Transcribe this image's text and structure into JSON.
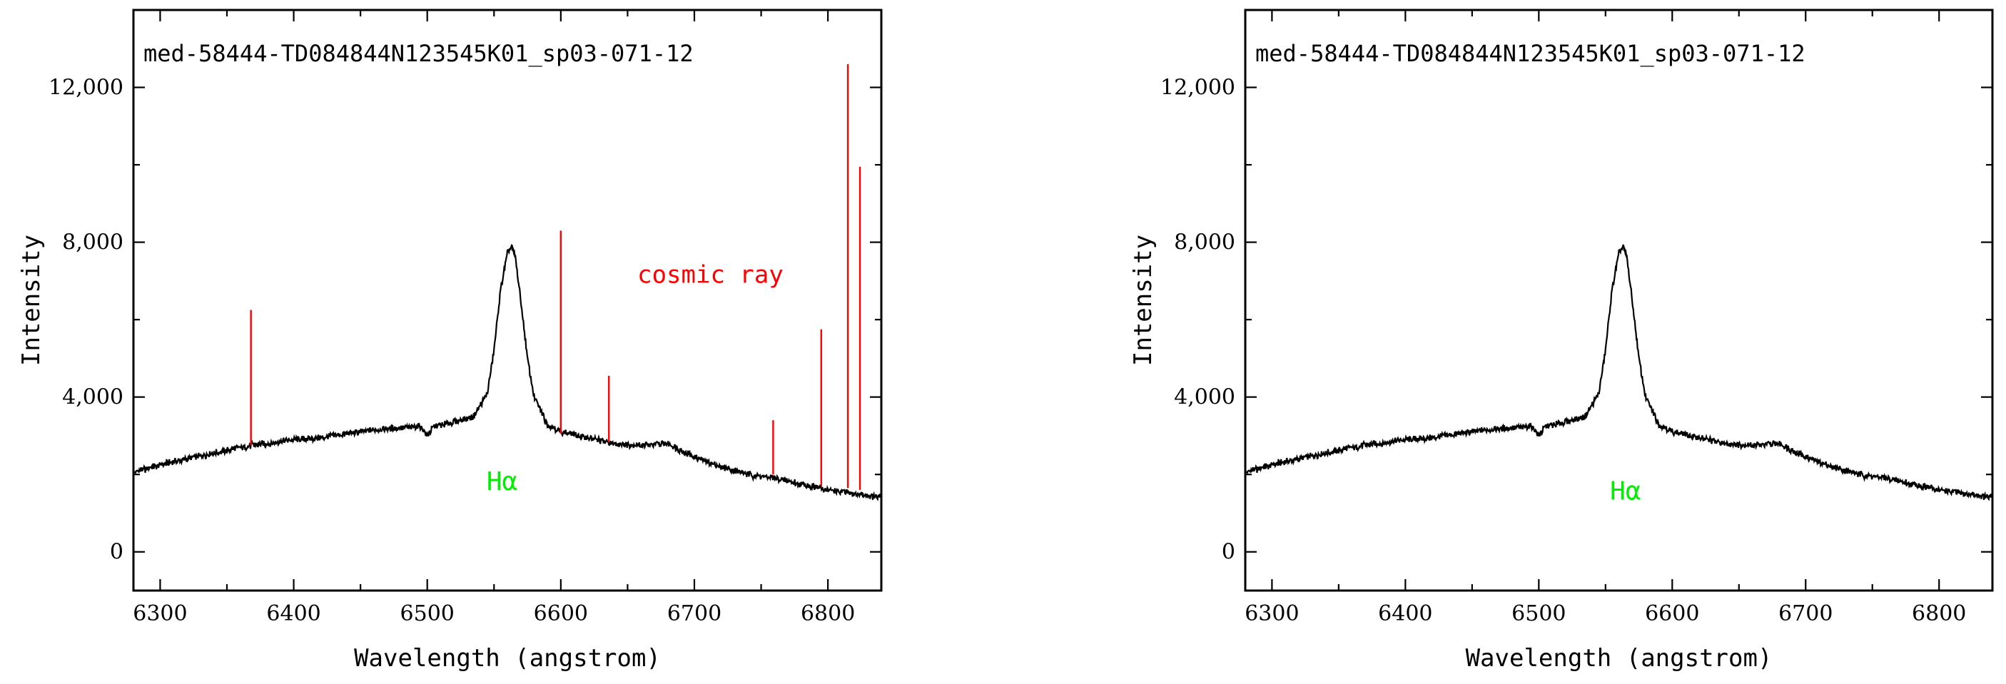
{
  "colors": {
    "spectrum": "#000000",
    "cosmic": "#ff0000",
    "halpha": "#00ee00"
  },
  "chart_data": [
    {
      "type": "line",
      "panel": "left",
      "title": "med-58444-TD084844N123545K01_sp03-071-12",
      "xlabel": "Wavelength (angstrom)",
      "ylabel": "Intensity",
      "xlim": [
        6280,
        6840
      ],
      "ylim": [
        -1000,
        14000
      ],
      "xticks": [
        6300,
        6400,
        6500,
        6600,
        6700,
        6800
      ],
      "xtick_labels": [
        "6300",
        "6400",
        "6500",
        "6600",
        "6700",
        "6800"
      ],
      "yticks": [
        0,
        4000,
        8000,
        12000
      ],
      "ytick_labels": [
        "0",
        "4,000",
        "8,000",
        "12,000"
      ],
      "annotations": [
        {
          "text": "cosmic ray",
          "x": 6712,
          "y": 6950,
          "color": "cosmic"
        },
        {
          "text": "Hα",
          "x": 6556,
          "y": 1600,
          "color": "halpha"
        }
      ],
      "cosmic_rays": [
        {
          "x": 6368,
          "base": 2750,
          "peak": 6250
        },
        {
          "x": 6600,
          "base": 3050,
          "peak": 8300
        },
        {
          "x": 6636,
          "base": 2850,
          "peak": 4550
        },
        {
          "x": 6759,
          "base": 2000,
          "peak": 3400
        },
        {
          "x": 6795,
          "base": 1700,
          "peak": 5750
        },
        {
          "x": 6815,
          "base": 1650,
          "peak": 12600
        },
        {
          "x": 6824,
          "base": 1600,
          "peak": 9950
        }
      ],
      "series": [
        {
          "name": "spectrum",
          "x": [
            6280,
            6300,
            6320,
            6340,
            6360,
            6380,
            6400,
            6420,
            6440,
            6460,
            6480,
            6495,
            6500,
            6505,
            6520,
            6535,
            6545,
            6550,
            6555,
            6560,
            6563,
            6566,
            6570,
            6575,
            6580,
            6590,
            6600,
            6620,
            6640,
            6660,
            6680,
            6700,
            6720,
            6740,
            6760,
            6780,
            6800,
            6820,
            6840
          ],
          "values": [
            2050,
            2250,
            2400,
            2550,
            2700,
            2800,
            2900,
            2950,
            3050,
            3150,
            3200,
            3250,
            3000,
            3250,
            3350,
            3500,
            4100,
            5200,
            6800,
            7700,
            7900,
            7600,
            6500,
            5000,
            4000,
            3300,
            3100,
            2950,
            2800,
            2750,
            2800,
            2450,
            2200,
            2000,
            1900,
            1750,
            1600,
            1500,
            1400
          ]
        }
      ]
    },
    {
      "type": "line",
      "panel": "right",
      "title": "med-58444-TD084844N123545K01_sp03-071-12",
      "xlabel": "Wavelength (angstrom)",
      "ylabel": "Intensity",
      "xlim": [
        6280,
        6840
      ],
      "ylim": [
        -1000,
        14000
      ],
      "xticks": [
        6300,
        6400,
        6500,
        6600,
        6700,
        6800
      ],
      "xtick_labels": [
        "6300",
        "6400",
        "6500",
        "6600",
        "6700",
        "6800"
      ],
      "yticks": [
        0,
        4000,
        8000,
        12000
      ],
      "ytick_labels": [
        "0",
        "4,000",
        "8,000",
        "12,000"
      ],
      "annotations": [
        {
          "text": "Hα",
          "x": 6565,
          "y": 1350,
          "color": "halpha"
        }
      ],
      "cosmic_rays": [],
      "series": [
        {
          "name": "spectrum",
          "x": [
            6280,
            6300,
            6320,
            6340,
            6360,
            6380,
            6400,
            6420,
            6440,
            6460,
            6480,
            6495,
            6500,
            6505,
            6520,
            6535,
            6545,
            6550,
            6555,
            6560,
            6563,
            6566,
            6570,
            6575,
            6580,
            6590,
            6600,
            6620,
            6640,
            6660,
            6680,
            6700,
            6720,
            6740,
            6760,
            6780,
            6800,
            6820,
            6840
          ],
          "values": [
            2050,
            2250,
            2400,
            2550,
            2700,
            2800,
            2900,
            2950,
            3050,
            3150,
            3200,
            3250,
            3000,
            3250,
            3350,
            3500,
            4100,
            5200,
            6800,
            7700,
            7900,
            7600,
            6500,
            5000,
            4000,
            3300,
            3100,
            2950,
            2800,
            2750,
            2800,
            2450,
            2200,
            2000,
            1900,
            1750,
            1600,
            1500,
            1400
          ]
        }
      ]
    }
  ]
}
